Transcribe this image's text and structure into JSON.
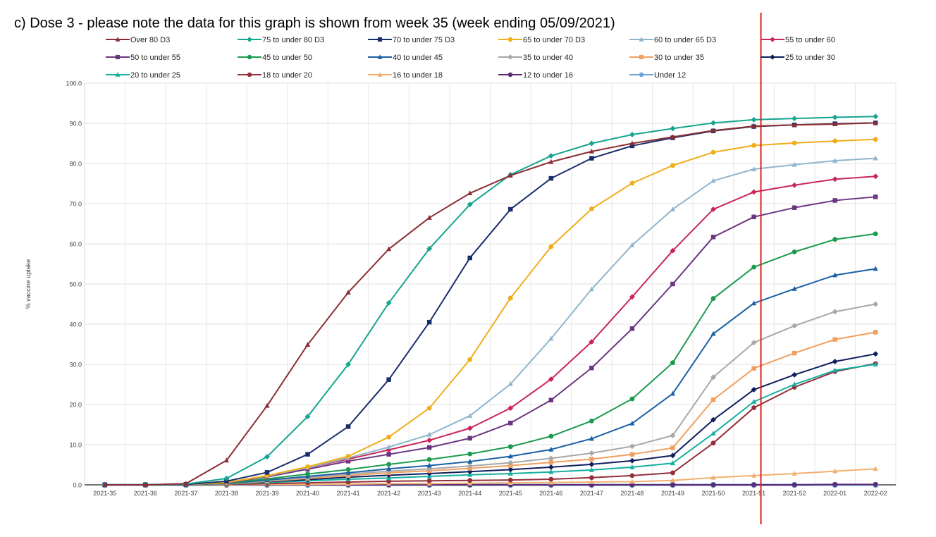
{
  "title": "c) Dose 3 - please note the data for this graph is shown from week 35 (week ending 05/09/2021)",
  "chart_data": {
    "type": "line",
    "ylabel": "% vaccine uptake",
    "xlabel": "",
    "ylim": [
      0,
      100
    ],
    "y_ticks": [
      "0.0",
      "10.0",
      "20.0",
      "30.0",
      "40.0",
      "50.0",
      "60.0",
      "70.0",
      "80.0",
      "90.0",
      "100.0"
    ],
    "grid": true,
    "legend_position": "top",
    "categories": [
      "2021-35",
      "2021-36",
      "2021-37",
      "2021-38",
      "2021-39",
      "2021-40",
      "2021-41",
      "2021-42",
      "2021-43",
      "2021-44",
      "2021-45",
      "2021-46",
      "2021-47",
      "2021-48",
      "2021-49",
      "2021-50",
      "2021-51",
      "2021-52",
      "2022-01",
      "2022-02"
    ],
    "reference_line": {
      "category": "2021-51",
      "color": "#e02020"
    },
    "series": [
      {
        "name": "Over 80 D3",
        "color": "#8b2e33",
        "marker": "triangle",
        "values": [
          0,
          0,
          0.3,
          6.1,
          19.7,
          34.9,
          47.9,
          58.7,
          66.5,
          72.6,
          77.0,
          80.4,
          83.0,
          85.0,
          86.6,
          88.2,
          89.3,
          89.6,
          89.8,
          90.1
        ]
      },
      {
        "name": "75 to under 80 D3",
        "color": "#14a58f",
        "marker": "diamond",
        "values": [
          0,
          0,
          0.2,
          1.6,
          7.0,
          17.0,
          30.0,
          45.3,
          58.8,
          69.8,
          77.2,
          81.9,
          85.0,
          87.2,
          88.7,
          90.1,
          90.9,
          91.2,
          91.5,
          91.7
        ]
      },
      {
        "name": "70 to under 75 D3",
        "color": "#1a2d6b",
        "marker": "square",
        "values": [
          0,
          0,
          0.1,
          0.9,
          3.1,
          7.6,
          14.5,
          26.2,
          40.5,
          56.5,
          68.6,
          76.3,
          81.3,
          84.4,
          86.4,
          88.1,
          89.2,
          89.6,
          89.9,
          90.1
        ]
      },
      {
        "name": "65 to under 70 D3",
        "color": "#f0ae1a",
        "marker": "circle",
        "values": [
          0,
          0,
          0.1,
          0.6,
          2.3,
          4.5,
          7.1,
          11.9,
          19.1,
          31.2,
          46.5,
          59.3,
          68.7,
          75.1,
          79.5,
          82.8,
          84.5,
          85.1,
          85.6,
          86.0
        ]
      },
      {
        "name": "60 to under 65 D3",
        "color": "#8fb6cd",
        "marker": "triangle",
        "values": [
          0,
          0,
          0.1,
          0.6,
          2.2,
          4.3,
          6.7,
          9.4,
          12.5,
          17.2,
          25.1,
          36.4,
          48.7,
          59.7,
          68.6,
          75.7,
          78.6,
          79.7,
          80.7,
          81.3
        ]
      },
      {
        "name": "55 to under 60",
        "color": "#c9255a",
        "marker": "diamond",
        "values": [
          0,
          0,
          0.1,
          0.6,
          2.2,
          4.3,
          6.4,
          8.7,
          11.1,
          14.1,
          19.1,
          26.3,
          35.6,
          46.8,
          58.3,
          68.6,
          72.9,
          74.6,
          76.1,
          76.8
        ]
      },
      {
        "name": "50 to under 55",
        "color": "#6b3580",
        "marker": "square",
        "values": [
          0,
          0,
          0.1,
          0.5,
          2.0,
          3.9,
          5.9,
          7.6,
          9.3,
          11.6,
          15.4,
          21.1,
          29.1,
          38.9,
          50.0,
          61.7,
          66.7,
          69.0,
          70.8,
          71.7
        ]
      },
      {
        "name": "45 to under 50",
        "color": "#1a9b4e",
        "marker": "circle",
        "values": [
          0,
          0,
          0.1,
          0.4,
          1.5,
          2.7,
          3.8,
          5.1,
          6.3,
          7.7,
          9.5,
          12.1,
          15.9,
          21.4,
          30.4,
          46.4,
          54.2,
          58.0,
          61.1,
          62.5
        ]
      },
      {
        "name": "40 to under 45",
        "color": "#1b60a5",
        "marker": "triangle",
        "values": [
          0,
          0,
          0.1,
          0.3,
          1.2,
          2.1,
          3.0,
          4.0,
          4.8,
          5.8,
          7.1,
          8.8,
          11.5,
          15.3,
          22.7,
          37.6,
          45.2,
          48.8,
          52.2,
          53.8
        ]
      },
      {
        "name": "35 to under 40",
        "color": "#a8a8a8",
        "marker": "diamond",
        "values": [
          0,
          0,
          0.1,
          0.3,
          1.0,
          1.8,
          2.7,
          3.4,
          4.0,
          4.7,
          5.5,
          6.6,
          7.9,
          9.6,
          12.3,
          26.8,
          35.4,
          39.6,
          43.1,
          45.0
        ]
      },
      {
        "name": "30 to under 35",
        "color": "#f0a060",
        "marker": "square",
        "values": [
          0,
          0,
          0.1,
          0.2,
          0.9,
          1.6,
          2.3,
          3.0,
          3.5,
          4.1,
          4.8,
          5.6,
          6.4,
          7.6,
          9.2,
          21.2,
          29.0,
          32.8,
          36.2,
          38.0
        ]
      },
      {
        "name": "25 to under 30",
        "color": "#0f1e5c",
        "marker": "diamond",
        "values": [
          0,
          0,
          0.1,
          0.2,
          0.8,
          1.3,
          1.9,
          2.4,
          2.8,
          3.3,
          3.8,
          4.4,
          5.1,
          6.0,
          7.3,
          16.2,
          23.7,
          27.4,
          30.7,
          32.6
        ]
      },
      {
        "name": "20 to under 25",
        "color": "#15b0a0",
        "marker": "triangle",
        "values": [
          0,
          0,
          0.1,
          0.2,
          0.6,
          1.0,
          1.4,
          1.7,
          2.1,
          2.5,
          2.8,
          3.2,
          3.7,
          4.4,
          5.4,
          12.8,
          20.7,
          25.0,
          28.5,
          30.0
        ]
      },
      {
        "name": "18 to under 20",
        "color": "#93303a",
        "marker": "circle",
        "values": [
          0,
          0,
          0,
          0.1,
          0.3,
          0.5,
          0.7,
          0.9,
          1.0,
          1.1,
          1.2,
          1.4,
          1.8,
          2.3,
          3.0,
          10.4,
          19.2,
          24.3,
          28.2,
          30.2
        ]
      },
      {
        "name": "16 to under 18",
        "color": "#f2b070",
        "marker": "triangle",
        "values": [
          0,
          0,
          0,
          0,
          0.1,
          0.1,
          0.2,
          0.3,
          0.3,
          0.4,
          0.5,
          0.6,
          0.7,
          0.8,
          1.1,
          1.8,
          2.3,
          2.8,
          3.4,
          4.0
        ]
      },
      {
        "name": "12 to under 16",
        "color": "#5e2a73",
        "marker": "circle",
        "values": [
          0,
          0,
          0,
          0,
          0,
          0,
          0,
          0,
          0,
          0,
          0,
          0,
          0,
          0,
          0,
          0,
          0,
          0,
          0.1,
          0.1
        ]
      },
      {
        "name": "Under 12",
        "color": "#6aa3d5",
        "marker": "circle",
        "values": [
          0,
          0,
          0,
          0,
          0,
          0,
          0,
          0,
          0,
          0,
          0,
          0,
          0,
          0,
          0,
          0,
          0,
          0,
          0,
          0
        ]
      }
    ]
  }
}
